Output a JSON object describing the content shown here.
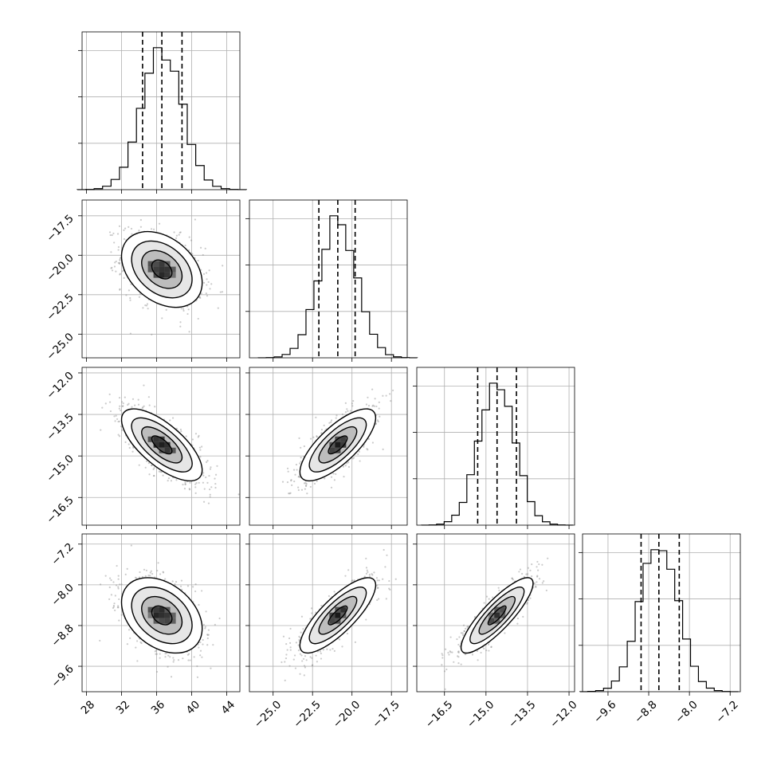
{
  "chart_data": {
    "type": "corner",
    "grid": true,
    "parameters": [
      {
        "range": [
          27.5,
          45.5
        ],
        "ticks": [
          28,
          32,
          36,
          40,
          44
        ],
        "tick_labels": [
          "28",
          "32",
          "36",
          "40",
          "44"
        ],
        "mean": 36.6,
        "sd": 2.3,
        "quantiles": [
          34.4,
          36.6,
          38.9
        ]
      },
      {
        "range": [
          -26.5,
          -16.5
        ],
        "ticks": [
          -25.0,
          -22.5,
          -20.0,
          -17.5
        ],
        "tick_labels": [
          "−25.0",
          "−22.5",
          "−20.0",
          "−17.5"
        ],
        "mean": -20.9,
        "sd": 1.2,
        "quantiles": [
          -22.1,
          -20.9,
          -19.8
        ]
      },
      {
        "range": [
          -17.5,
          -11.8
        ],
        "ticks": [
          -16.5,
          -15.0,
          -13.5,
          -12.0
        ],
        "tick_labels": [
          "−16.5",
          "−15.0",
          "−13.5",
          "−12.0"
        ],
        "mean": -14.6,
        "sd": 0.65,
        "quantiles": [
          -15.3,
          -14.6,
          -13.9
        ]
      },
      {
        "range": [
          -10.1,
          -7.0
        ],
        "ticks": [
          -9.6,
          -8.8,
          -8.0,
          -7.2
        ],
        "tick_labels": [
          "−9.6",
          "−8.8",
          "−8.0",
          "−7.2"
        ],
        "mean": -8.6,
        "sd": 0.37,
        "quantiles": [
          -8.95,
          -8.6,
          -8.2
        ]
      }
    ],
    "correlations": [
      {
        "i": 1,
        "j": 0,
        "rho": -0.35
      },
      {
        "i": 2,
        "j": 0,
        "rho": -0.7
      },
      {
        "i": 2,
        "j": 1,
        "rho": 0.75
      },
      {
        "i": 3,
        "j": 0,
        "rho": -0.35
      },
      {
        "i": 3,
        "j": 1,
        "rho": 0.8
      },
      {
        "i": 3,
        "j": 2,
        "rho": 0.85
      }
    ],
    "contour_levels": [
      0.5,
      1.0,
      1.5,
      2.0
    ]
  }
}
